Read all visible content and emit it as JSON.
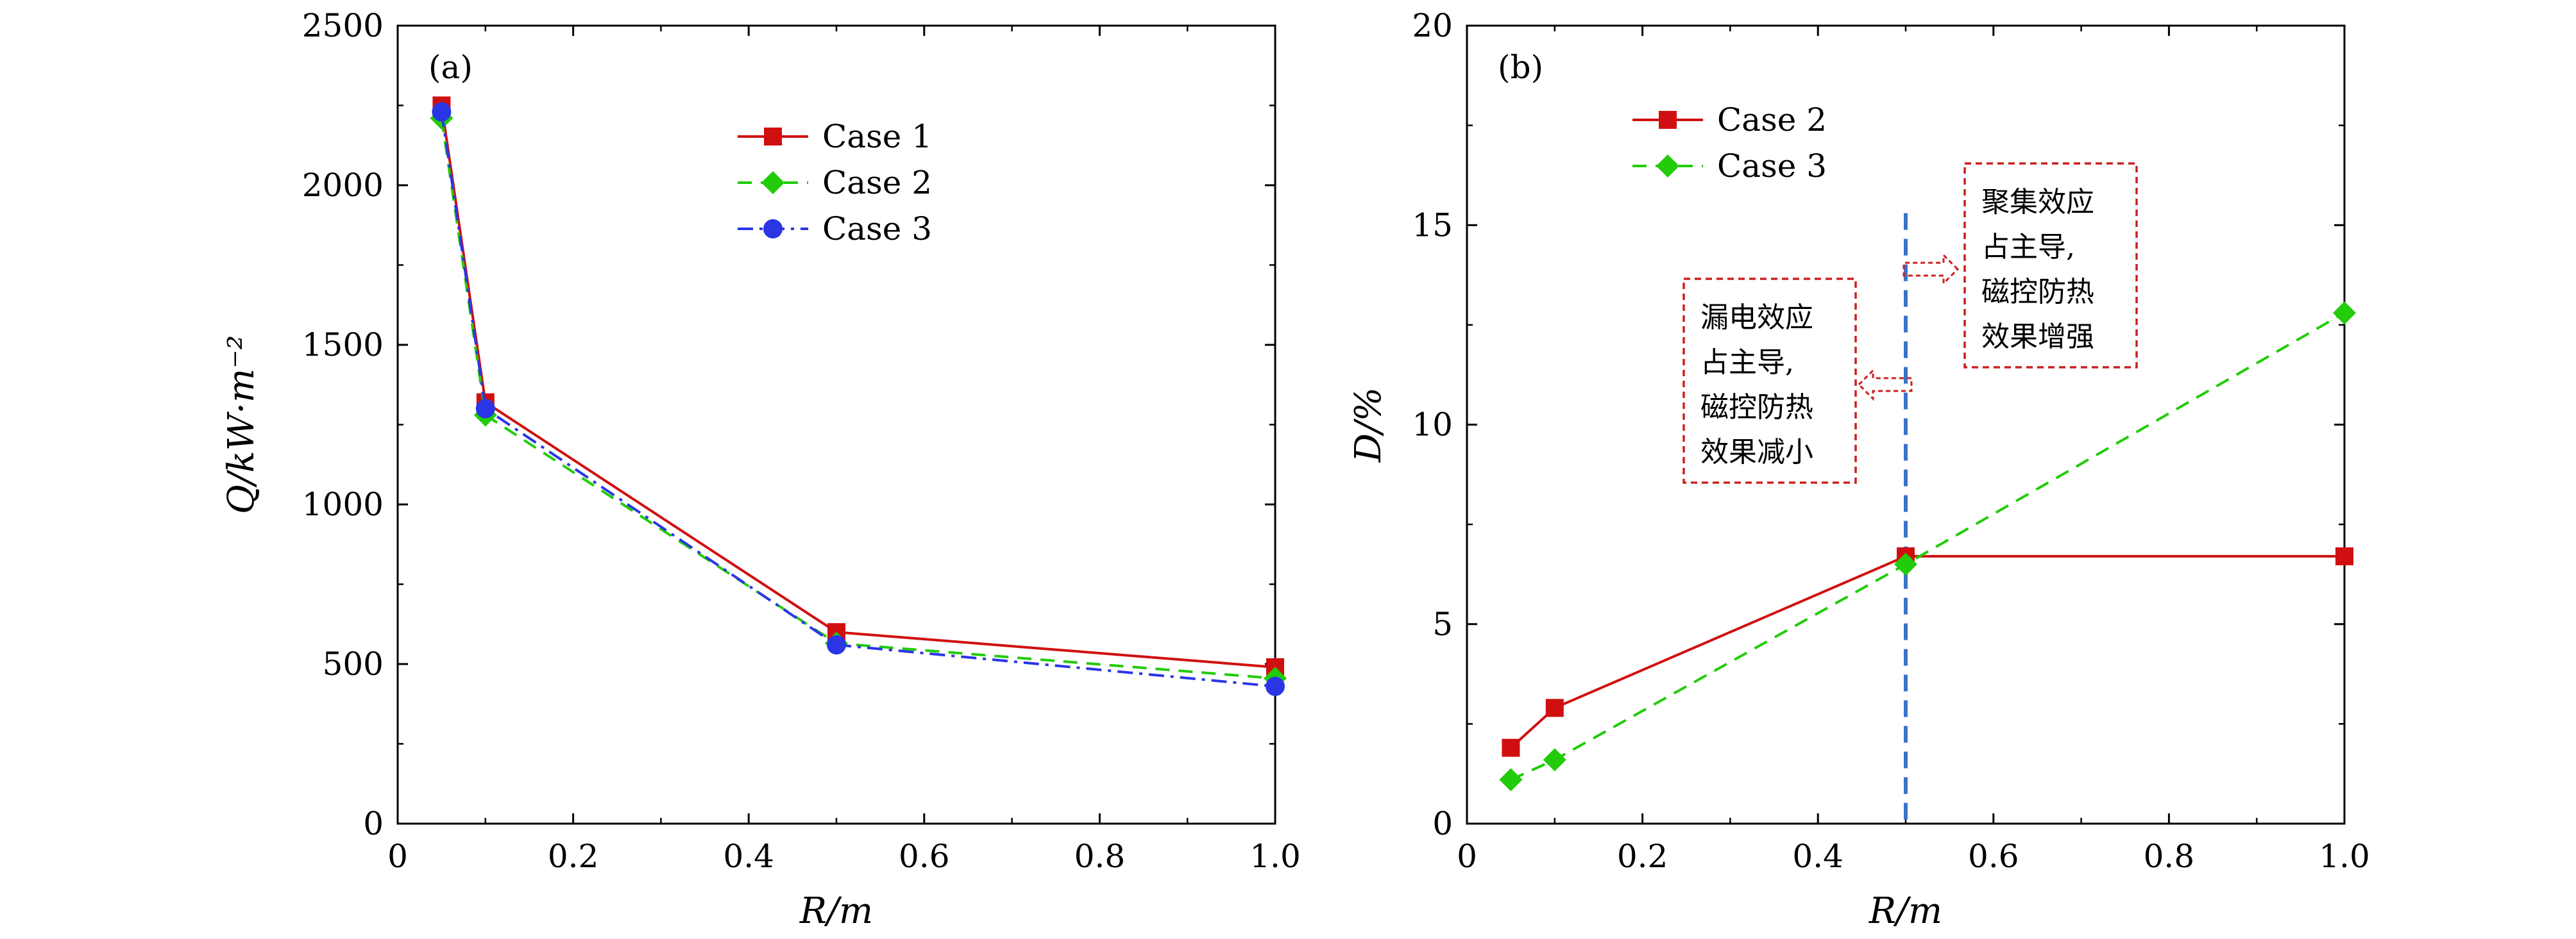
{
  "colors": {
    "case1": "#d01010",
    "case2": "#22cc0a",
    "case3": "#2a36e6",
    "vline": "#3b72c8",
    "annotation": "#cc1f1f"
  },
  "chart_data": [
    {
      "type": "line",
      "panel_label": "(a)",
      "xlabel": "R/m",
      "ylabel": "Q/kW·m⁻²",
      "xlim": [
        0,
        1.0
      ],
      "ylim": [
        0,
        2500
      ],
      "xticks": [
        "0",
        "0.2",
        "0.4",
        "0.6",
        "0.8",
        "1.0"
      ],
      "yticks": [
        "0",
        "500",
        "1000",
        "1500",
        "2000",
        "2500"
      ],
      "legend_position": "upper-center",
      "series": [
        {
          "name": "Case 1",
          "marker": "square",
          "line": "solid",
          "color": "#d01010",
          "x": [
            0.05,
            0.1,
            0.5,
            1.0
          ],
          "y": [
            2250,
            1320,
            600,
            490
          ]
        },
        {
          "name": "Case 2",
          "marker": "diamond",
          "line": "dashed",
          "color": "#22cc0a",
          "x": [
            0.05,
            0.1,
            0.5,
            1.0
          ],
          "y": [
            2210,
            1280,
            565,
            455
          ]
        },
        {
          "name": "Case 3",
          "marker": "circle",
          "line": "dashdot",
          "color": "#2a36e6",
          "x": [
            0.05,
            0.1,
            0.5,
            1.0
          ],
          "y": [
            2230,
            1300,
            560,
            430
          ]
        }
      ]
    },
    {
      "type": "line",
      "panel_label": "(b)",
      "xlabel": "R/m",
      "ylabel": "D/%",
      "xlim": [
        0,
        1.0
      ],
      "ylim": [
        0,
        20
      ],
      "xticks": [
        "0",
        "0.2",
        "0.4",
        "0.6",
        "0.8",
        "1.0"
      ],
      "yticks": [
        "0",
        "5",
        "10",
        "15",
        "20"
      ],
      "legend_position": "upper-left",
      "vertical_line_x": 0.5,
      "series": [
        {
          "name": "Case 2",
          "marker": "square",
          "line": "solid",
          "color": "#d01010",
          "x": [
            0.05,
            0.1,
            0.5,
            1.0
          ],
          "y": [
            1.9,
            2.9,
            6.7,
            6.7
          ]
        },
        {
          "name": "Case 3",
          "marker": "diamond",
          "line": "dashed",
          "color": "#22cc0a",
          "x": [
            0.05,
            0.1,
            0.5,
            1.0
          ],
          "y": [
            1.1,
            1.6,
            6.5,
            12.8
          ]
        }
      ],
      "annotations": [
        {
          "lines": [
            "漏电效应",
            "占主导,",
            "磁控防热",
            "效果减小"
          ],
          "arrow": "left"
        },
        {
          "lines": [
            "聚集效应",
            "占主导,",
            "磁控防热",
            "效果增强"
          ],
          "arrow": "right"
        }
      ]
    }
  ]
}
